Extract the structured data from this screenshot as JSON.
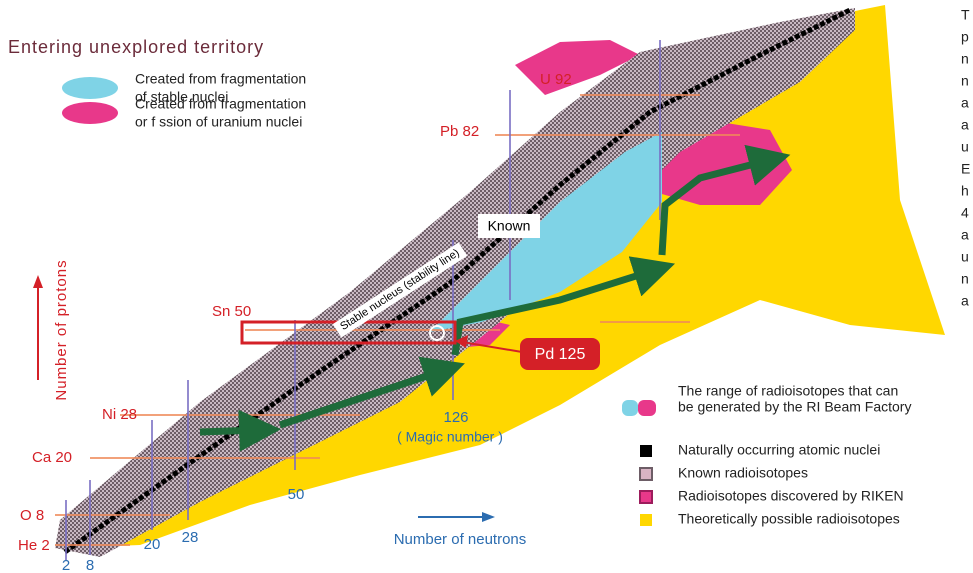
{
  "title": "Entering unexplored territory",
  "top_legend": [
    {
      "lines": [
        "Created from fragmentation",
        "of stable nuclei"
      ]
    },
    {
      "lines": [
        "Created from fragmentation",
        "or f ssion of uranium nuclei"
      ]
    }
  ],
  "elements": [
    "He 2",
    "O 8",
    "Ca 20",
    "Ni 28",
    "Sn 50",
    "Pb 82",
    "U 92"
  ],
  "neutron_labels": [
    "2",
    "8",
    "20",
    "28",
    "50",
    "126"
  ],
  "magic_number": "( Magic number )",
  "known": "Known",
  "stability_line": "Stable nucleus (stability line)",
  "callout": "Pd 125",
  "y_axis": "Number of protons",
  "x_axis": "Number of neutrons",
  "bottom_legend": [
    {
      "lines": [
        "The range of radioisotopes that can",
        "be generated by the RI Beam Factory"
      ]
    },
    {
      "lines": [
        "Naturally occurring atomic nuclei"
      ]
    },
    {
      "lines": [
        "Known radioisotopes"
      ]
    },
    {
      "lines": [
        "Radioisotopes discovered by RIKEN"
      ]
    },
    {
      "lines": [
        "Theoretically possible radioisotopes"
      ]
    }
  ],
  "side_text": [
    "T",
    "p",
    "n",
    "n",
    "a",
    "a",
    "u",
    "E",
    "h",
    "4",
    "a",
    "u",
    "n",
    "a"
  ]
}
